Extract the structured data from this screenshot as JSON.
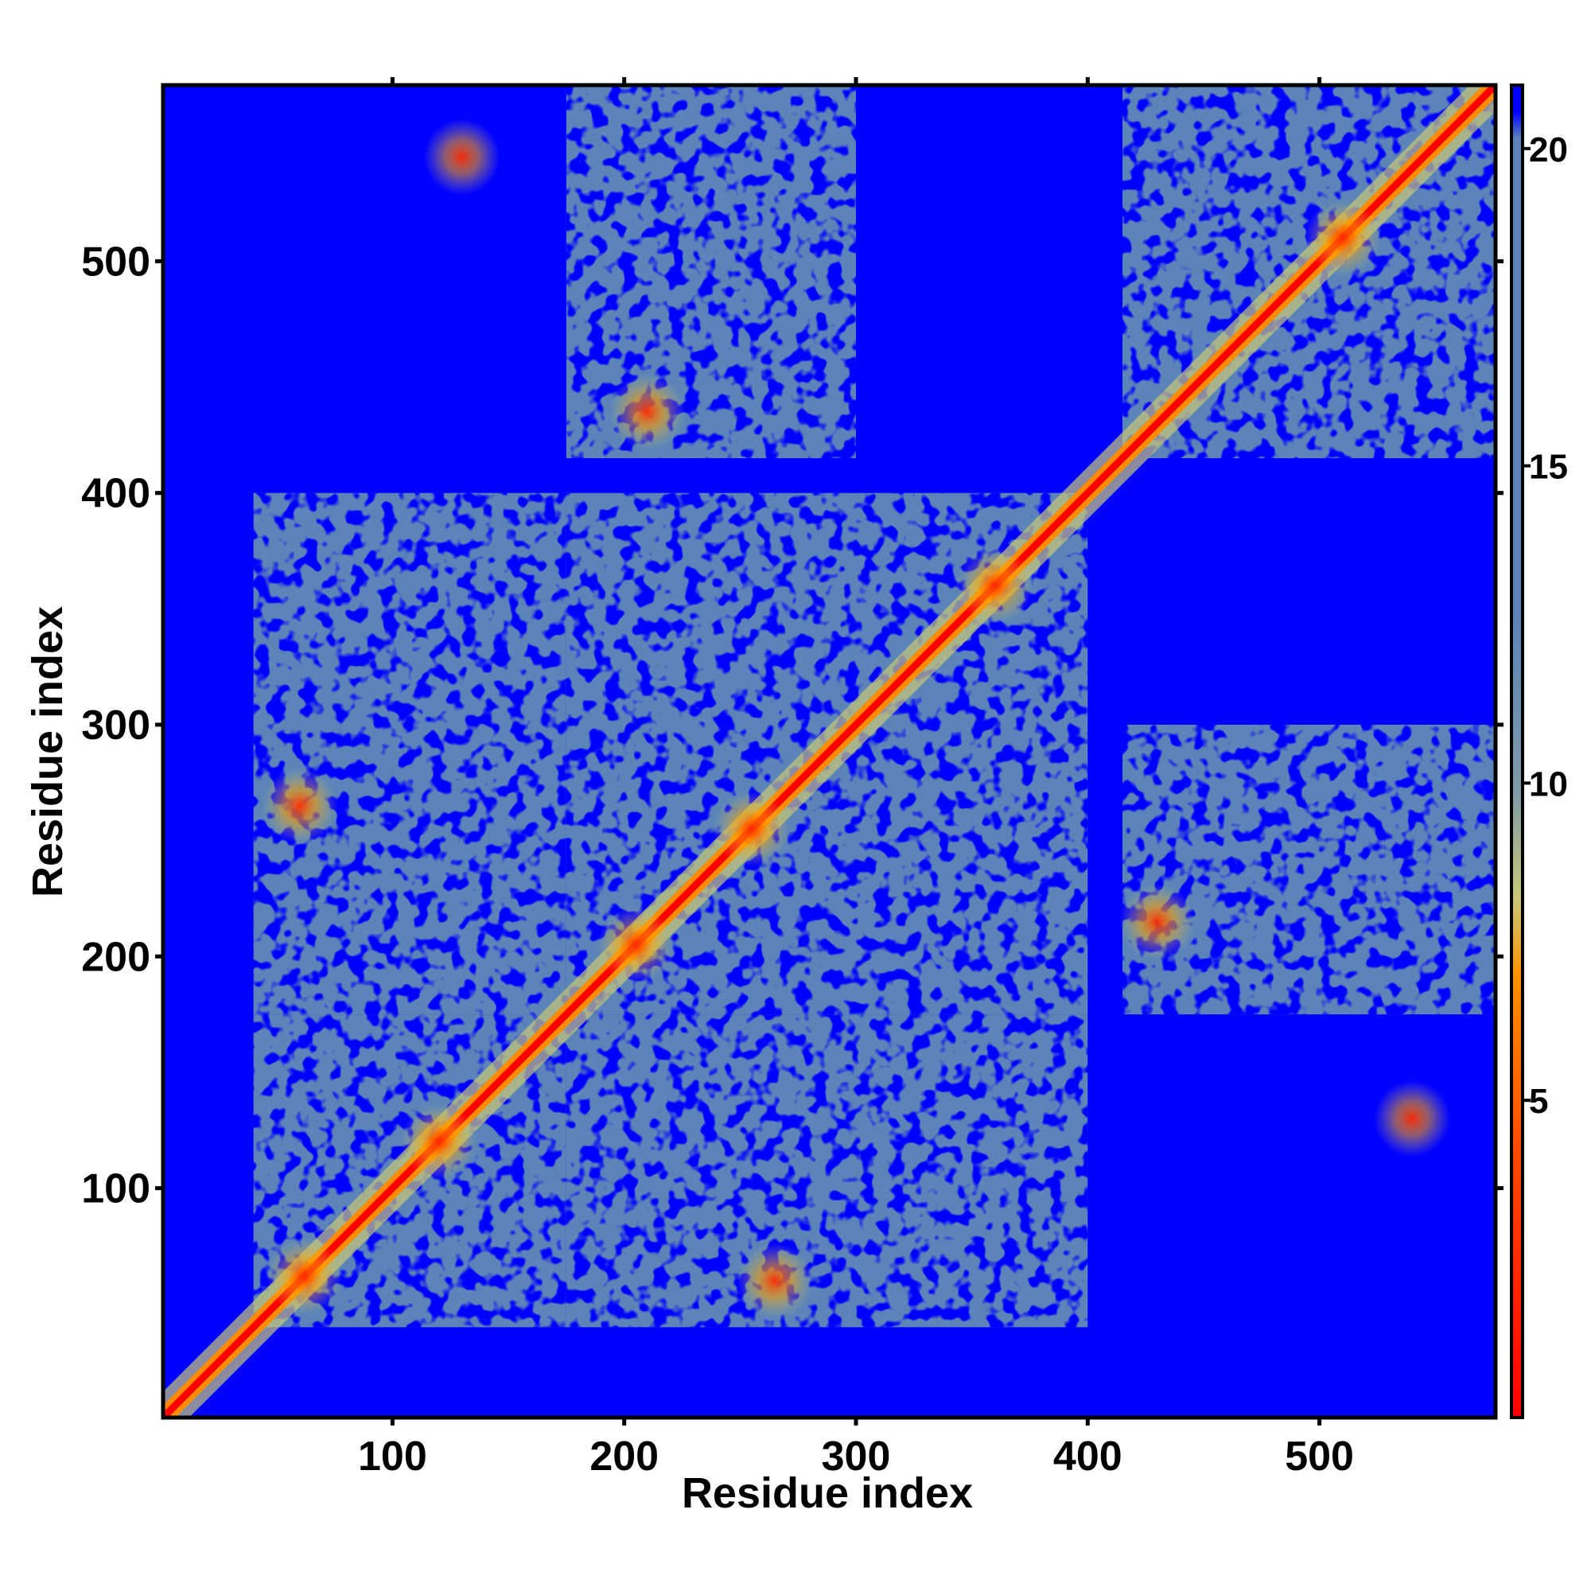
{
  "chart_data": {
    "type": "heatmap",
    "title": "",
    "xlabel": "Residue index",
    "ylabel": "Residue index",
    "xlim": [
      1,
      576
    ],
    "ylim": [
      1,
      576
    ],
    "x_ticks": [
      100,
      200,
      300,
      400,
      500
    ],
    "y_ticks": [
      100,
      200,
      300,
      400,
      500
    ],
    "grid": false,
    "colorbar": {
      "range": [
        0,
        21
      ],
      "ticks": [
        5,
        10,
        15,
        20
      ],
      "colors": [
        "#ff0000",
        "#ff8c00",
        "#c8c878",
        "#5b85b8",
        "#0000ff"
      ],
      "placement": "right"
    },
    "domains": [
      {
        "start": 40,
        "end": 175
      },
      {
        "start": 175,
        "end": 300
      },
      {
        "start": 300,
        "end": 400
      },
      {
        "start": 415,
        "end": 576
      }
    ],
    "hotspots": [
      {
        "x": 62,
        "y": 62
      },
      {
        "x": 120,
        "y": 120
      },
      {
        "x": 205,
        "y": 205
      },
      {
        "x": 255,
        "y": 255
      },
      {
        "x": 360,
        "y": 360
      },
      {
        "x": 510,
        "y": 510
      },
      {
        "x": 130,
        "y": 545
      },
      {
        "x": 540,
        "y": 130
      },
      {
        "x": 430,
        "y": 215
      },
      {
        "x": 210,
        "y": 435
      },
      {
        "x": 60,
        "y": 265
      },
      {
        "x": 265,
        "y": 60
      }
    ]
  }
}
